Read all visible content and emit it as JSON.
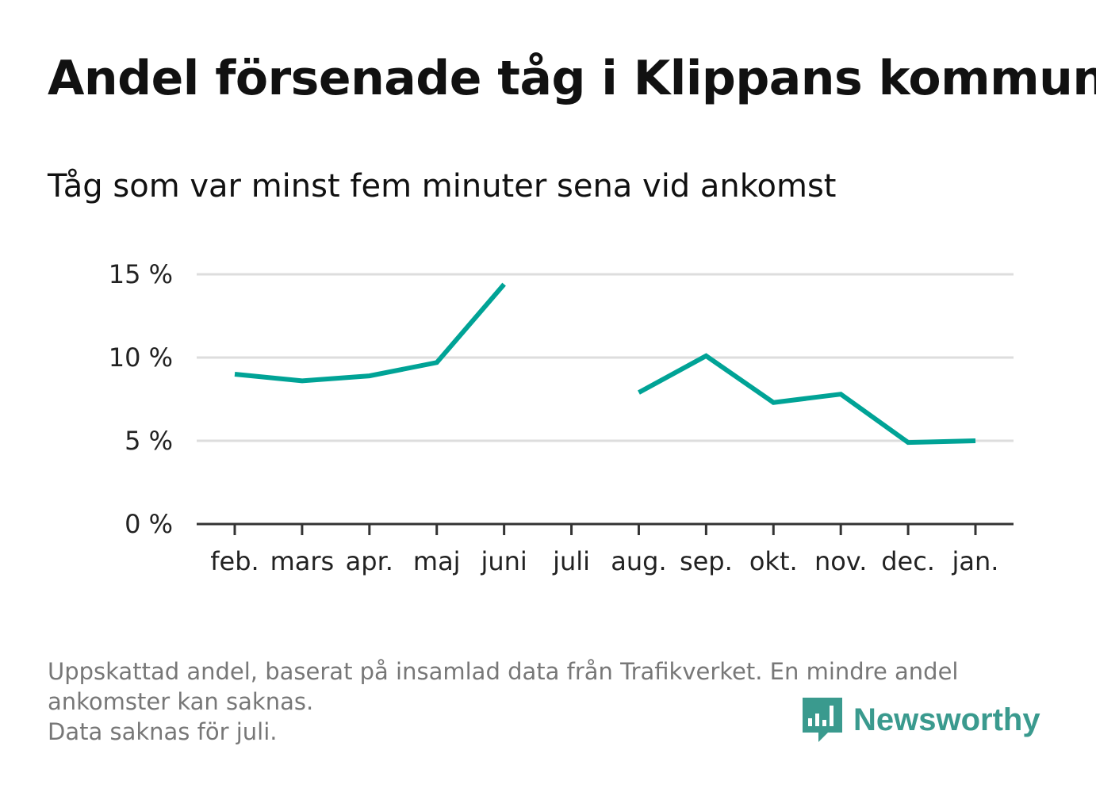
{
  "header": {
    "title": "Andel försenade tåg i Klippans kommun",
    "subtitle": "Tåg som var minst fem minuter sena vid ankomst"
  },
  "chart_data": {
    "type": "line",
    "title": "Andel försenade tåg i Klippans kommun",
    "subtitle": "Tåg som var minst fem minuter sena vid ankomst",
    "xlabel": "",
    "ylabel": "",
    "categories": [
      "feb.",
      "mars",
      "apr.",
      "maj",
      "juni",
      "juli",
      "aug.",
      "sep.",
      "okt.",
      "nov.",
      "dec.",
      "jan."
    ],
    "y_ticks": [
      0,
      5,
      10,
      15
    ],
    "y_tick_labels": [
      "0 %",
      "5 %",
      "10 %",
      "15 %"
    ],
    "ylim": [
      0,
      15
    ],
    "grid": true,
    "series": [
      {
        "values": [
          9.0,
          8.6,
          8.9,
          9.7,
          14.4,
          null,
          7.9,
          10.1,
          7.3,
          7.8,
          4.9,
          5.0
        ]
      }
    ],
    "colors": {
      "line": "#00a396",
      "grid": "#dddddd",
      "axis": "#333333"
    }
  },
  "footnote": {
    "line1": "Uppskattad andel, baserat på insamlad data från Trafikverket. En mindre andel",
    "line2": "ankomster kan saknas.",
    "line3": "Data saknas för juli."
  },
  "brand": {
    "name": "Newsworthy",
    "icon": "bar-chart-speech-bubble-icon",
    "color": "#3a9a8e"
  }
}
